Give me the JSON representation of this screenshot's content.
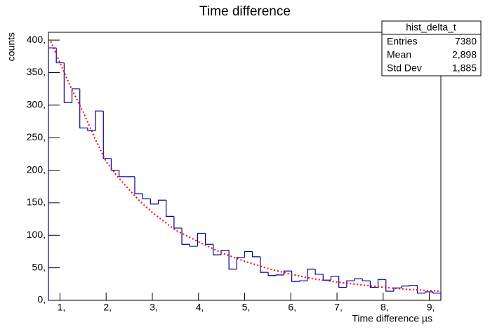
{
  "chart_data": {
    "type": "histogram",
    "title": "Time difference",
    "x_label": "Time difference µs",
    "y_label": "counts",
    "bins": [
      0.75,
      0.92,
      1.09,
      1.26,
      1.43,
      1.6,
      1.77,
      1.94,
      2.11,
      2.28,
      2.45,
      2.62,
      2.79,
      2.96,
      3.13,
      3.3,
      3.47,
      3.64,
      3.81,
      3.98,
      4.15,
      4.32,
      4.49,
      4.66,
      4.83,
      5.0,
      5.17,
      5.34,
      5.51,
      5.68,
      5.85,
      6.02,
      6.19,
      6.36,
      6.53,
      6.7,
      6.87,
      7.04,
      7.21,
      7.38,
      7.55,
      7.72,
      7.89,
      8.06,
      8.23,
      8.4,
      8.57,
      8.74,
      8.91,
      9.08,
      9.25
    ],
    "values": [
      388,
      365,
      304,
      325,
      265,
      261,
      291,
      218,
      200,
      190,
      190,
      164,
      156,
      148,
      154,
      129,
      111,
      86,
      83,
      103,
      86,
      70,
      77,
      48,
      66,
      75,
      67,
      43,
      38,
      39,
      45,
      29,
      30,
      48,
      40,
      31,
      37,
      20,
      30,
      33,
      30,
      20,
      32,
      14,
      19,
      22,
      23,
      11,
      13,
      11
    ],
    "color": "#000099",
    "fit": {
      "color": "#ff0000",
      "x": [
        0.8,
        1.0,
        1.25,
        1.5,
        1.75,
        2.0,
        2.25,
        2.5,
        2.75,
        3.0,
        3.5,
        4.0,
        4.5,
        5.0,
        5.5,
        6.0,
        6.5,
        7.0,
        7.5,
        8.0,
        8.5,
        9.0,
        9.2
      ],
      "values": [
        398,
        365,
        325,
        290,
        250,
        213,
        190,
        170,
        151,
        135,
        108,
        90,
        73,
        60,
        49,
        40,
        33,
        28,
        24,
        20,
        17,
        15,
        14
      ]
    },
    "xlim": [
      0.75,
      9.25
    ],
    "ylim": [
      0,
      412
    ],
    "xticks": [
      {
        "value": 1,
        "label": "1,"
      },
      {
        "value": 2,
        "label": "2,"
      },
      {
        "value": 3,
        "label": "3,"
      },
      {
        "value": 4,
        "label": "4,"
      },
      {
        "value": 5,
        "label": "5,"
      },
      {
        "value": 6,
        "label": "6,"
      },
      {
        "value": 7,
        "label": "7,"
      },
      {
        "value": 8,
        "label": "8,"
      },
      {
        "value": 9,
        "label": "9,"
      }
    ],
    "yticks": [
      {
        "value": 0,
        "label": "0,"
      },
      {
        "value": 50,
        "label": "50,"
      },
      {
        "value": 100,
        "label": "100,"
      },
      {
        "value": 150,
        "label": "150,"
      },
      {
        "value": 200,
        "label": "200,"
      },
      {
        "value": 250,
        "label": "250,"
      },
      {
        "value": 300,
        "label": "300,"
      },
      {
        "value": 350,
        "label": "350,"
      },
      {
        "value": 400,
        "label": "400,"
      }
    ],
    "stats": {
      "title": "hist_delta_t",
      "rows": [
        [
          "Entries",
          "7380"
        ],
        [
          "Mean",
          "2,898"
        ],
        [
          "Std Dev",
          "1,885"
        ]
      ]
    }
  }
}
